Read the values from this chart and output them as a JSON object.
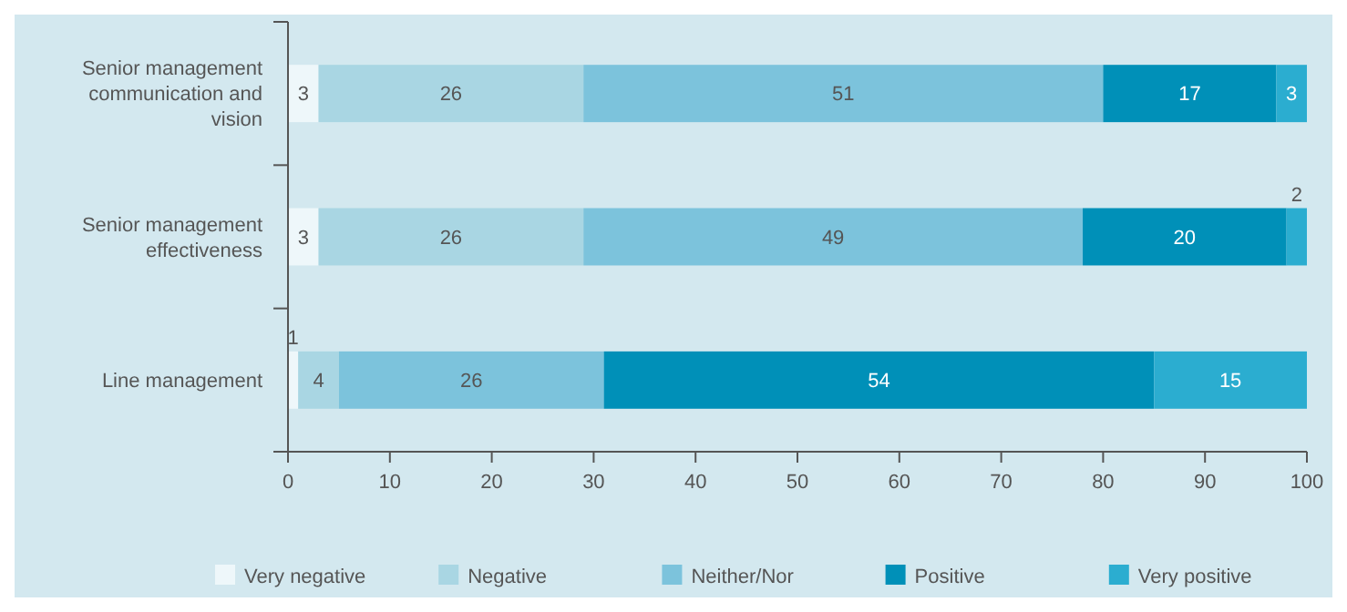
{
  "chart_data": {
    "type": "bar",
    "orientation": "horizontal",
    "stacked": true,
    "data_labels": true,
    "legend": "bottom",
    "grid": false,
    "categories": [
      "Senior management communication and vision",
      "Senior management effectiveness",
      "Line management"
    ],
    "xlim": [
      0,
      100
    ],
    "xticks": [
      0,
      10,
      20,
      30,
      40,
      50,
      60,
      70,
      80,
      90,
      100
    ],
    "series": [
      {
        "name": "Very negative",
        "color": "#eef7fa",
        "values": [
          3,
          3,
          1
        ]
      },
      {
        "name": "Negative",
        "color": "#a9d6e3",
        "values": [
          26,
          26,
          4
        ]
      },
      {
        "name": "Neither/Nor",
        "color": "#7cc3dc",
        "values": [
          51,
          49,
          26
        ]
      },
      {
        "name": "Positive",
        "color": "#0090b8",
        "values": [
          17,
          20,
          54
        ]
      },
      {
        "name": "Very positive",
        "color": "#2badd0",
        "values": [
          3,
          2,
          15
        ]
      }
    ]
  }
}
